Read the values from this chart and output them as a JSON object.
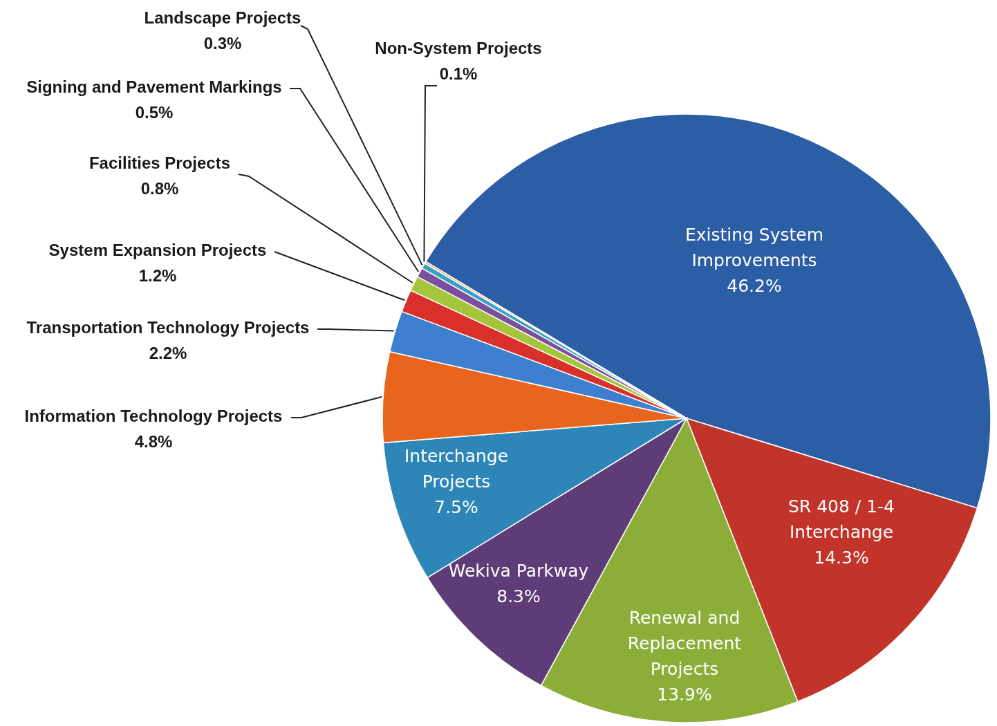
{
  "chart_data": {
    "type": "pie",
    "categories": [
      "Existing System Improvements",
      "SR 408 / 1-4 Interchange",
      "Renewal and Replacement Projects",
      "Wekiva Parkway",
      "Interchange Projects",
      "Information Technology Projects",
      "Transportation Technology Projects",
      "System Expansion Projects",
      "Facilities Projects",
      "Signing and Pavement Markings",
      "Landscape Projects",
      "Non-System Projects"
    ],
    "values": [
      46.2,
      14.3,
      13.9,
      8.3,
      7.5,
      4.8,
      2.2,
      1.2,
      0.8,
      0.5,
      0.3,
      0.1
    ],
    "value_labels": [
      "46.2%",
      "14.3%",
      "13.9%",
      "8.3%",
      "7.5%",
      "4.8%",
      "2.2%",
      "1.2%",
      "0.8%",
      "0.5%",
      "0.3%",
      "0.1%"
    ],
    "colors": [
      "#2c5ea6",
      "#c2332a",
      "#8cad38",
      "#5d3c78",
      "#2e86b8",
      "#e9641c",
      "#3e7fcf",
      "#d9302c",
      "#a5c63c",
      "#7b4f9b",
      "#3aa0c8",
      "#f08a30"
    ],
    "legend": false
  }
}
